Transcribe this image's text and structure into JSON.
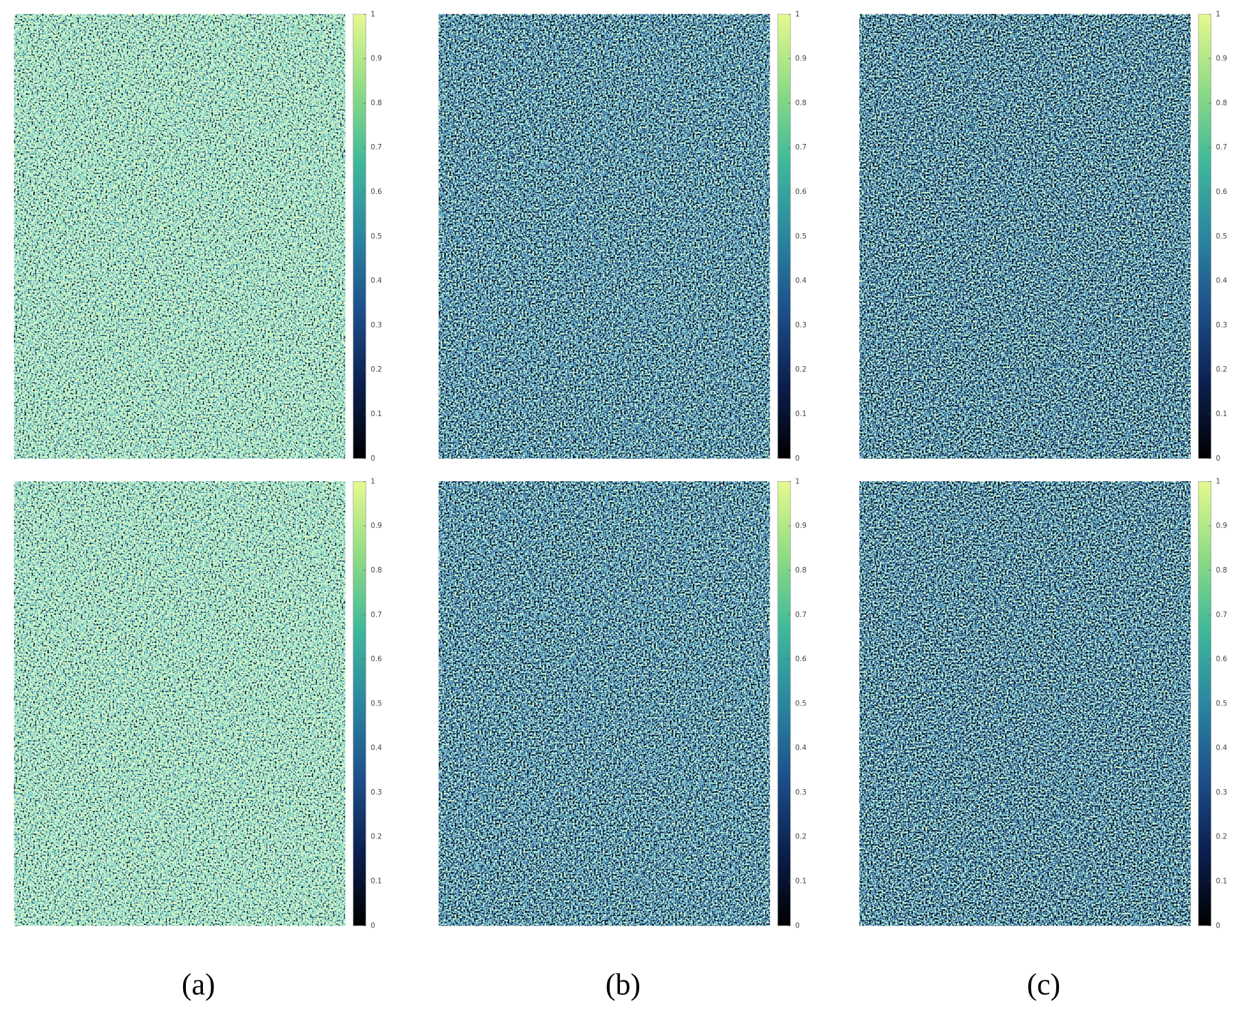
{
  "panel_labels": [
    "(a)",
    "(b)",
    "(c)"
  ],
  "chart_data": [
    {
      "type": "heatmap",
      "colormap": [
        "#000000",
        "#0b1f4f",
        "#1d4f8a",
        "#2a86a0",
        "#3fb89a",
        "#8fdc84",
        "#e6f990"
      ],
      "ylim": [
        0,
        1
      ],
      "yticks": [
        0,
        0.1,
        0.2,
        0.3,
        0.4,
        0.5,
        0.6,
        0.7,
        0.8,
        0.9,
        1
      ]
    },
    {
      "type": "heatmap",
      "colormap": [
        "#000000",
        "#0b1f4f",
        "#1d4f8a",
        "#2a86a0",
        "#3fb89a",
        "#8fdc84",
        "#e6f990"
      ],
      "ylim": [
        0,
        1
      ],
      "yticks": [
        0,
        0.1,
        0.2,
        0.3,
        0.4,
        0.5,
        0.6,
        0.7,
        0.8,
        0.9,
        1
      ]
    },
    {
      "type": "heatmap",
      "colormap": [
        "#000000",
        "#0b1f4f",
        "#1d4f8a",
        "#2a86a0",
        "#3fb89a",
        "#8fdc84",
        "#e6f990"
      ],
      "ylim": [
        0,
        1
      ],
      "yticks": [
        0,
        0.1,
        0.2,
        0.3,
        0.4,
        0.5,
        0.6,
        0.7,
        0.8,
        0.9,
        1
      ]
    },
    {
      "type": "heatmap",
      "colormap": [
        "#000000",
        "#0b1f4f",
        "#1d4f8a",
        "#2a86a0",
        "#3fb89a",
        "#8fdc84",
        "#e6f990"
      ],
      "ylim": [
        0,
        1
      ],
      "yticks": [
        0,
        0.1,
        0.2,
        0.3,
        0.4,
        0.5,
        0.6,
        0.7,
        0.8,
        0.9,
        1
      ]
    },
    {
      "type": "heatmap",
      "colormap": [
        "#000000",
        "#0b1f4f",
        "#1d4f8a",
        "#2a86a0",
        "#3fb89a",
        "#8fdc84",
        "#e6f990"
      ],
      "ylim": [
        0,
        1
      ],
      "yticks": [
        0,
        0.1,
        0.2,
        0.3,
        0.4,
        0.5,
        0.6,
        0.7,
        0.8,
        0.9,
        1
      ]
    },
    {
      "type": "heatmap",
      "colormap": [
        "#000000",
        "#0b1f4f",
        "#1d4f8a",
        "#2a86a0",
        "#3fb89a",
        "#8fdc84",
        "#e6f990"
      ],
      "ylim": [
        0,
        1
      ],
      "yticks": [
        0,
        0.1,
        0.2,
        0.3,
        0.4,
        0.5,
        0.6,
        0.7,
        0.8,
        0.9,
        1
      ]
    }
  ]
}
